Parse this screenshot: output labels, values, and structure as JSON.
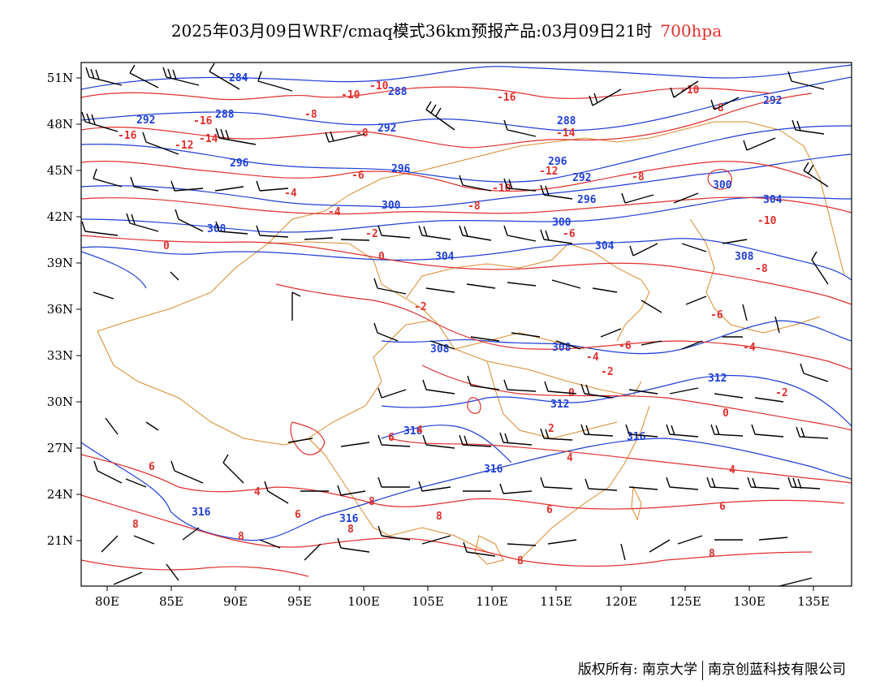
{
  "title": {
    "main": "2025年03月09日WRF/cmaq模式36km预报产品:03月09日21时",
    "level": "700hpa",
    "level_color": "#e0302d"
  },
  "footer": {
    "copyright_label": "版权所有:",
    "org1": "南京大学",
    "org2": "南京创蓝科技有限公司"
  },
  "map": {
    "region": "East Asia",
    "lon_range": [
      78,
      138
    ],
    "lat_range": [
      18,
      52
    ],
    "lon_ticks": [
      "80E",
      "85E",
      "90E",
      "95E",
      "100E",
      "105E",
      "110E",
      "115E",
      "120E",
      "125E",
      "130E",
      "135E"
    ],
    "lat_ticks": [
      "51N",
      "48N",
      "45N",
      "42N",
      "39N",
      "36N",
      "33N",
      "30N",
      "27N",
      "24N",
      "21N"
    ],
    "colors": {
      "temperature_contour": "#e0302d",
      "height_contour": "#1f3fd6",
      "boundary": "#d98a2b",
      "wind_barb": "#000000"
    },
    "height_labels": [
      "284",
      "288",
      "292",
      "296",
      "300",
      "304",
      "308",
      "312",
      "316"
    ],
    "temperature_labels": [
      "-16",
      "-14",
      "-12",
      "-10",
      "-8",
      "-6",
      "-4",
      "-2",
      "0",
      "2",
      "4",
      "6",
      "8"
    ]
  }
}
